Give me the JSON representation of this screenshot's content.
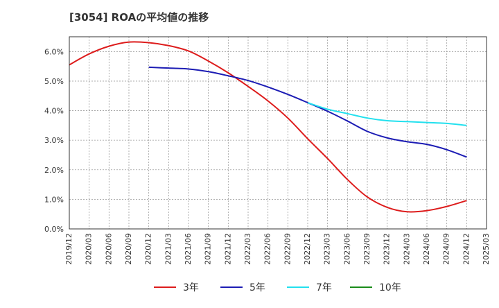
{
  "chart_data": {
    "type": "line",
    "title": "[3054]  ROAの平均値の推移",
    "xlabel": "",
    "ylabel": "",
    "x_ticks": [
      "2019/12",
      "2020/03",
      "2020/06",
      "2020/09",
      "2020/12",
      "2021/03",
      "2021/06",
      "2021/09",
      "2021/12",
      "2022/03",
      "2022/06",
      "2022/09",
      "2022/12",
      "2023/03",
      "2023/06",
      "2023/09",
      "2023/12",
      "2024/03",
      "2024/06",
      "2024/09",
      "2024/12",
      "2025/03"
    ],
    "y_ticks": [
      "0.0%",
      "1.0%",
      "2.0%",
      "3.0%",
      "4.0%",
      "5.0%",
      "6.0%"
    ],
    "ylim": [
      0,
      6.5
    ],
    "grid": true,
    "legend_position": "bottom",
    "series": [
      {
        "name": "3年",
        "color": "#dd1c1c",
        "x": [
          "2019/12",
          "2020/03",
          "2020/06",
          "2020/09",
          "2020/12",
          "2021/03",
          "2021/06",
          "2021/09",
          "2021/12",
          "2022/03",
          "2022/06",
          "2022/09",
          "2022/12",
          "2023/03",
          "2023/06",
          "2023/09",
          "2023/12",
          "2024/03",
          "2024/06",
          "2024/09",
          "2024/12"
        ],
        "values": [
          5.55,
          5.92,
          6.18,
          6.32,
          6.3,
          6.2,
          6.02,
          5.68,
          5.28,
          4.82,
          4.33,
          3.75,
          3.05,
          2.38,
          1.67,
          1.08,
          0.73,
          0.58,
          0.62,
          0.76,
          0.96
        ]
      },
      {
        "name": "5年",
        "color": "#1c1cb4",
        "x": [
          "2020/12",
          "2021/03",
          "2021/06",
          "2021/09",
          "2021/12",
          "2022/03",
          "2022/06",
          "2022/09",
          "2022/12",
          "2023/03",
          "2023/06",
          "2023/09",
          "2023/12",
          "2024/03",
          "2024/06",
          "2024/09",
          "2024/12"
        ],
        "values": [
          5.47,
          5.44,
          5.41,
          5.32,
          5.18,
          5.02,
          4.8,
          4.55,
          4.27,
          3.98,
          3.65,
          3.3,
          3.08,
          2.95,
          2.86,
          2.68,
          2.43
        ]
      },
      {
        "name": "7年",
        "color": "#22e0ee",
        "x": [
          "2022/12",
          "2023/03",
          "2023/06",
          "2023/09",
          "2023/12",
          "2024/03",
          "2024/06",
          "2024/09",
          "2024/12"
        ],
        "values": [
          4.27,
          4.05,
          3.9,
          3.75,
          3.66,
          3.63,
          3.6,
          3.57,
          3.5
        ]
      },
      {
        "name": "10年",
        "color": "#1a8c1a",
        "x": [],
        "values": []
      }
    ]
  }
}
